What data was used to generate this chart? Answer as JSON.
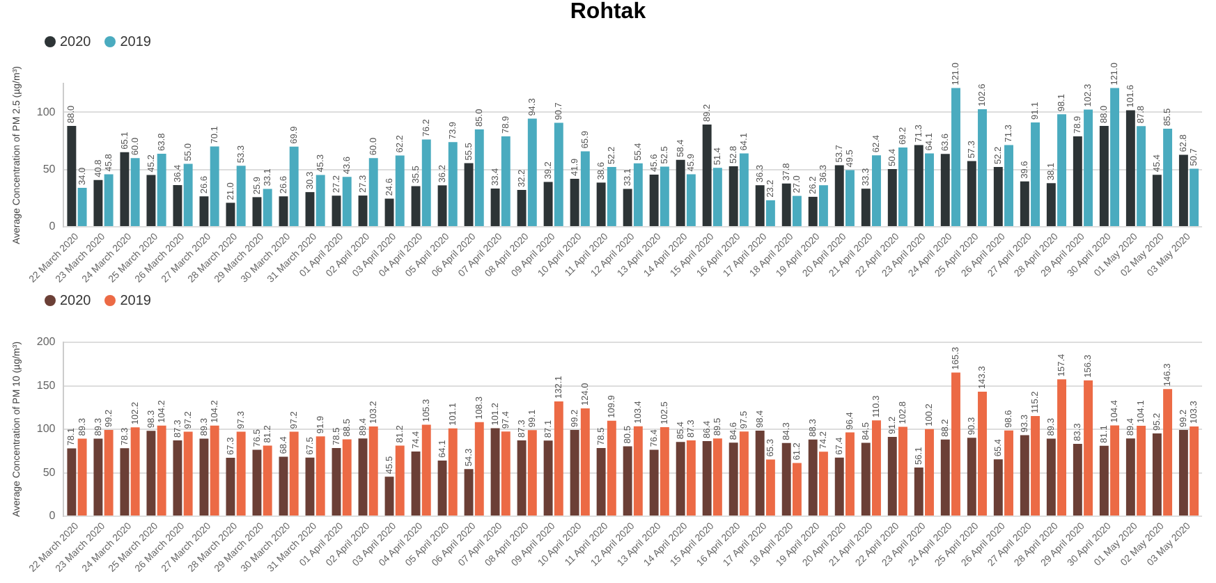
{
  "chart_data": [
    {
      "type": "bar",
      "title": "Rohtak",
      "ylabel": "Average Concentration of PM 2.5 (µg/m³)",
      "categories": [
        "22 March 2020",
        "23 March 2020",
        "24 March 2020",
        "25 March 2020",
        "26 March 2020",
        "27 March 2020",
        "28 March 2020",
        "29 March 2020",
        "30 March 2020",
        "31 March 2020",
        "01 April 2020",
        "02 April 2020",
        "03 April 2020",
        "04 April 2020",
        "05 April 2020",
        "06 April 2020",
        "07 April 2020",
        "08 April 2020",
        "09 April 2020",
        "10 April 2020",
        "11 April 2020",
        "12 April 2020",
        "13 April 2020",
        "14 April 2020",
        "15 April 2020",
        "16 April 2020",
        "17 April 2020",
        "18 April 2020",
        "19 April 2020",
        "20 April 2020",
        "21 April 2020",
        "22 April 2020",
        "23 April 2020",
        "24 April 2020",
        "25 April 2020",
        "26 April 2020",
        "27 April 2020",
        "28 April 2020",
        "29 April 2020",
        "30 April 2020",
        "01 May 2020",
        "02 May 2020",
        "03 May 2020"
      ],
      "series": [
        {
          "name": "2020",
          "color": "#2d3436",
          "values": [
            88.0,
            40.8,
            65.1,
            45.2,
            36.4,
            26.6,
            21.0,
            25.9,
            26.6,
            30.3,
            27.2,
            27.3,
            24.6,
            35.5,
            36.2,
            55.5,
            33.4,
            32.2,
            39.2,
            41.9,
            38.6,
            33.1,
            45.6,
            58.4,
            89.2,
            52.8,
            36.3,
            37.8,
            26.2,
            53.7,
            33.3,
            50.4,
            71.3,
            63.6,
            57.3,
            52.2,
            39.6,
            38.1,
            78.9,
            88.0,
            101.6,
            45.4,
            62.8
          ],
          "value_labels": [
            "88.0",
            "40.8",
            "65.1",
            "45.2",
            "36.4",
            "26.6",
            "21.0",
            "25.9",
            "26.6",
            "30.3",
            "27.2",
            "27.3",
            "24.6",
            "35.5",
            "36.2",
            "55.5",
            "33.4",
            "32.2",
            "39.2",
            "41.9",
            "38.6",
            "33.1",
            "45.6",
            "58.4",
            "89.2",
            "52.8",
            "36.3",
            "37.8",
            "26.2",
            "53.7",
            "33.3",
            "50.4",
            "71.3",
            "63.6",
            "57.3",
            "52.2",
            "39.6",
            "38.1",
            "78.9",
            "88.0",
            "101.6",
            "45.4",
            "62.8"
          ]
        },
        {
          "name": "2019",
          "color": "#4aabbf",
          "values": [
            34.0,
            45.8,
            60.0,
            63.8,
            55.0,
            70.1,
            53.3,
            33.1,
            69.9,
            45.3,
            43.6,
            60.0,
            62.2,
            76.2,
            73.9,
            85.0,
            78.9,
            94.3,
            90.7,
            65.9,
            52.2,
            55.4,
            52.5,
            45.9,
            51.4,
            64.1,
            23.2,
            27.0,
            36.3,
            49.5,
            62.4,
            69.2,
            64.1,
            121.0,
            102.6,
            71.3,
            91.1,
            98.1,
            102.3,
            121.0,
            87.8,
            85.5,
            50.7
          ],
          "value_labels": [
            "34.0",
            "45.8",
            "60.0",
            "63.8",
            "55.0",
            "70.1",
            "53.3",
            "33.1",
            "69.9",
            "45.3",
            "43.6",
            "60.0",
            "62.2",
            "76.2",
            "73.9",
            "85.0",
            "78.9",
            "94.3",
            "90.7",
            "65.9",
            "52.2",
            "55.4",
            "52.5",
            "45.9",
            "51.4",
            "64.1",
            "23.2",
            "27.0",
            "36.3",
            "49.5",
            "62.4",
            "69.2",
            "64.1",
            "121.0",
            "102.6",
            "71.3",
            "91.1",
            "98.1",
            "102.3",
            "121.0",
            "87.8",
            "85.5",
            "50.7"
          ]
        }
      ],
      "ylim": [
        0,
        125
      ],
      "yticks": [
        0,
        50,
        100
      ],
      "grid": "y",
      "legend": "top left"
    },
    {
      "type": "bar",
      "ylabel": "Average Concentration of PM 10 (µg/m³)",
      "categories": [
        "22 March 2020",
        "23 March 2020",
        "24 March 2020",
        "25 March 2020",
        "26 March 2020",
        "27 March 2020",
        "28 March 2020",
        "29 March 2020",
        "30 March 2020",
        "31 March 2020",
        "01 April 2020",
        "02 April 2020",
        "03 April 2020",
        "04 April 2020",
        "05 April 2020",
        "06 April 2020",
        "07 April 2020",
        "08 April 2020",
        "09 April 2020",
        "10 April 2020",
        "11 April 2020",
        "12 April 2020",
        "13 April 2020",
        "14 April 2020",
        "15 April 2020",
        "16 April 2020",
        "17 April 2020",
        "18 April 2020",
        "19 April 2020",
        "20 April 2020",
        "21 April 2020",
        "22 April 2020",
        "23 April 2020",
        "24 April 2020",
        "25 April 2020",
        "26 April 2020",
        "27 April 2020",
        "28 April 2020",
        "29 April 2020",
        "30 April 2020",
        "01 May 2020",
        "02 May 2020",
        "03 May 2020"
      ],
      "series": [
        {
          "name": "2020",
          "color": "#6b3f36",
          "values": [
            78.1,
            89.3,
            78.3,
            98.3,
            87.3,
            89.3,
            67.3,
            76.5,
            68.4,
            67.5,
            78.5,
            89.4,
            45.5,
            74.4,
            64.1,
            54.3,
            101.2,
            87.3,
            87.1,
            99.2,
            78.5,
            80.5,
            76.4,
            85.4,
            86.4,
            84.6,
            98.4,
            84.3,
            88.3,
            67.4,
            84.5,
            91.2,
            56.1,
            88.2,
            90.3,
            65.4,
            93.3,
            89.3,
            83.3,
            81.1,
            89.4,
            95.2,
            99.2
          ],
          "value_labels": [
            "78.1",
            "89.3",
            "78.3",
            "98.3",
            "87.3",
            "89.3",
            "67.3",
            "76.5",
            "68.4",
            "67.5",
            "78.5",
            "89.4",
            "45.5",
            "74.4",
            "64.1",
            "54.3",
            "101.2",
            "87.3",
            "87.1",
            "99.2",
            "78.5",
            "80.5",
            "76.4",
            "85.4",
            "86.4",
            "84.6",
            "98.4",
            "84.3",
            "88.3",
            "67.4",
            "84.5",
            "91.2",
            "56.1",
            "88.2",
            "90.3",
            "65.4",
            "93.3",
            "89.3",
            "83.3",
            "81.1",
            "89.4",
            "95.2",
            "99.2"
          ]
        },
        {
          "name": "2019",
          "color": "#ec6a45",
          "values": [
            89.3,
            99.2,
            102.2,
            104.2,
            97.2,
            104.2,
            97.3,
            81.2,
            97.2,
            91.9,
            88.5,
            103.2,
            81.2,
            105.3,
            101.1,
            108.3,
            97.4,
            99.1,
            132.1,
            124.0,
            109.9,
            103.4,
            102.5,
            87.3,
            89.5,
            97.5,
            65.3,
            61.2,
            74.2,
            96.4,
            110.3,
            102.8,
            100.2,
            165.3,
            143.3,
            98.6,
            115.2,
            157.4,
            156.3,
            104.4,
            104.1,
            146.3,
            103.3
          ],
          "value_labels": [
            "89.3",
            "99.2",
            "102.2",
            "104.2",
            "97.2",
            "104.2",
            "97.3",
            "81.2",
            "97.2",
            "91.9",
            "88.5",
            "103.2",
            "81.2",
            "105.3",
            "101.1",
            "108.3",
            "97.4",
            "99.1",
            "132.1",
            "124.0",
            "109.9",
            "103.4",
            "102.5",
            "87.3",
            "89.5",
            "97.5",
            "65.3",
            "61.2",
            "74.2",
            "96.4",
            "110.3",
            "102.8",
            "100.2",
            "165.3",
            "143.3",
            "98.6",
            "115.2",
            "157.4",
            "156.3",
            "104.4",
            "104.1",
            "146.3",
            "103.3"
          ]
        }
      ],
      "ylim": [
        0,
        200
      ],
      "yticks": [
        0,
        50,
        100,
        150,
        200
      ],
      "grid": "y",
      "legend": "top left"
    }
  ]
}
